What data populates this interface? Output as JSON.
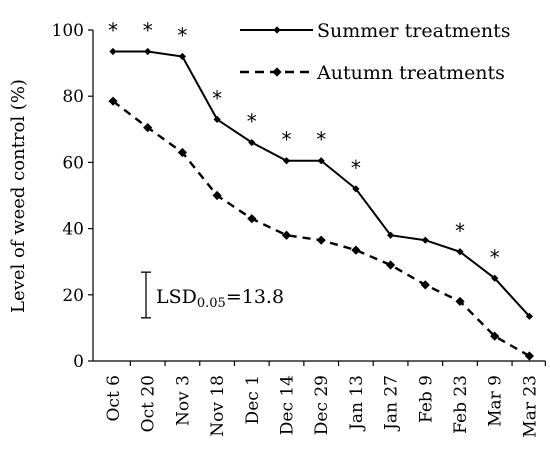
{
  "chart_data": {
    "type": "line",
    "title": "",
    "xlabel": "",
    "ylabel": "Level of weed control (%)",
    "ylim": [
      0,
      100
    ],
    "yticks": [
      "0",
      "20",
      "40",
      "60",
      "80",
      "100"
    ],
    "grid": false,
    "legend_position": "top-right",
    "categories": [
      "Oct 6",
      "Oct 20",
      "Nov 3",
      "Nov 18",
      "Dec 1",
      "Dec 14",
      "Dec 29",
      "Jan 13",
      "Jan 27",
      "Feb 9",
      "Feb 23",
      "Mar 9",
      "Mar 23"
    ],
    "series": [
      {
        "name": "Summer treatments",
        "line_style": "solid",
        "color": "#000000",
        "values": [
          93.5,
          93.5,
          92,
          73,
          66,
          60.5,
          60.5,
          52,
          38,
          36.5,
          33,
          25,
          13.5
        ]
      },
      {
        "name": "Autumn treatments",
        "line_style": "dashed",
        "color": "#000000",
        "values": [
          78.5,
          70.5,
          63,
          50,
          43,
          38,
          36.5,
          33.5,
          29,
          23,
          18,
          7.5,
          1.5
        ]
      }
    ],
    "significance_marker": "*",
    "significant_categories": [
      "Oct 6",
      "Oct 20",
      "Nov 3",
      "Nov 18",
      "Dec 1",
      "Dec 14",
      "Dec 29",
      "Jan 13",
      "Feb 23",
      "Mar 9"
    ],
    "lsd": {
      "prefix": "LSD",
      "subscript": "0.05",
      "suffix": "=13.8",
      "value": 13.8
    }
  }
}
